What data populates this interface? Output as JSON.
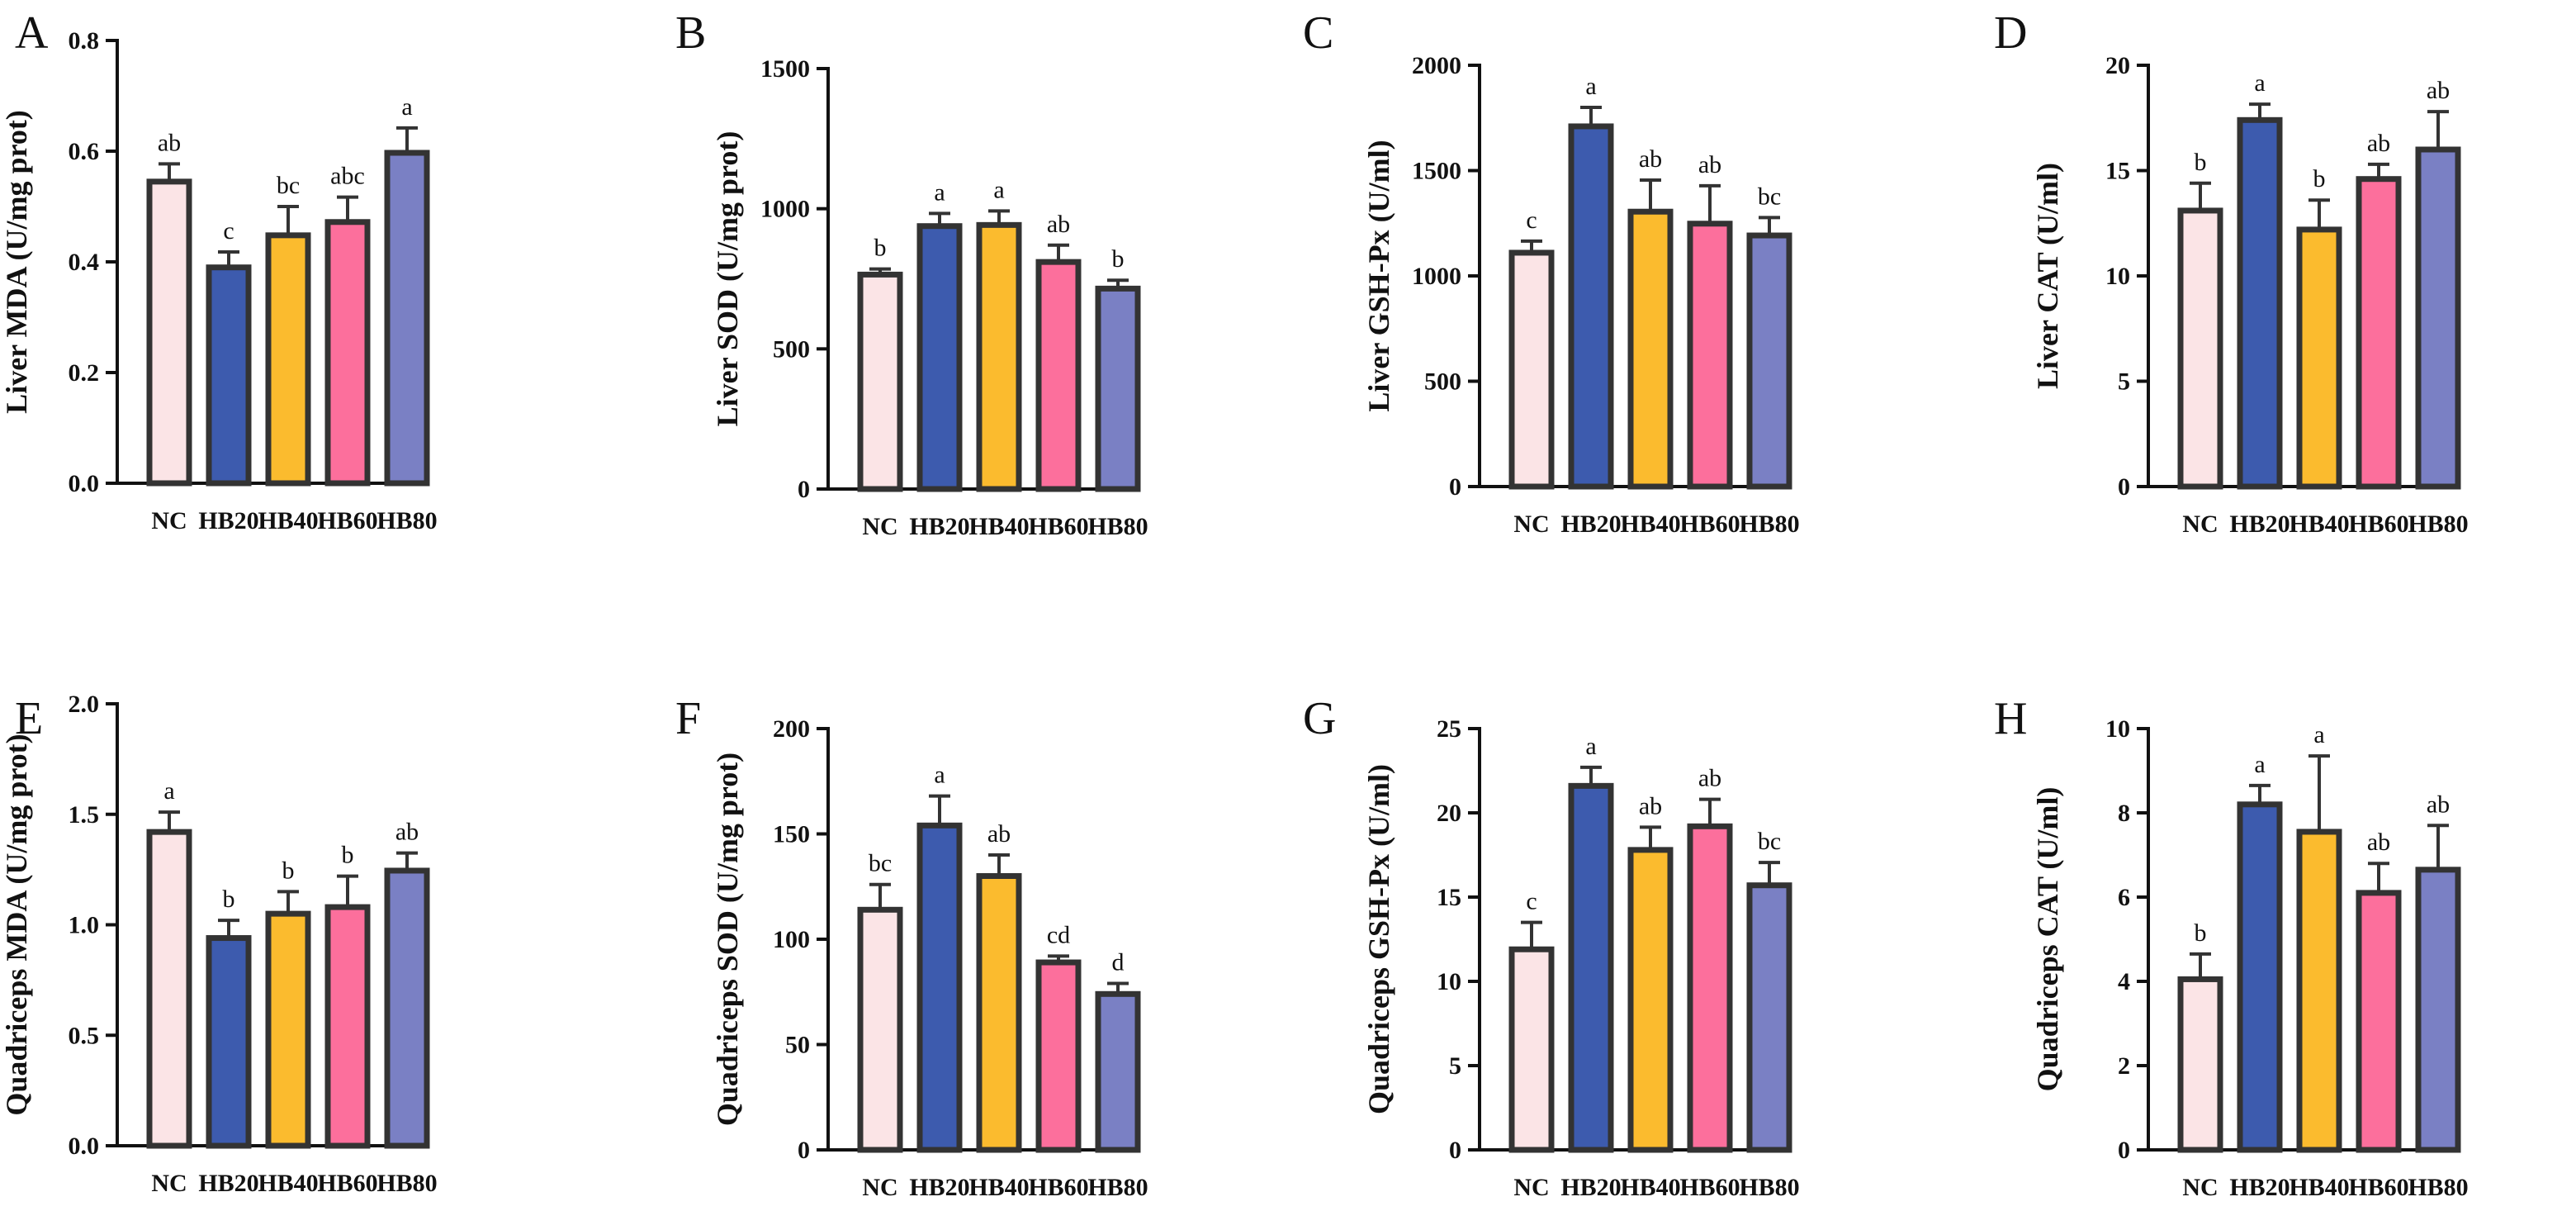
{
  "colors": {
    "NC": "#fbe4e6",
    "HB20": "#3d5bae",
    "HB40": "#fbbb2e",
    "HB60": "#fc6f9c",
    "HB80": "#7a80c4",
    "outline": "#333333"
  },
  "categories": [
    "NC",
    "HB20",
    "HB40",
    "HB60",
    "HB80"
  ],
  "chart_data": [
    {
      "panel": "A",
      "type": "bar",
      "ylabel": "Liver MDA (U/mg prot)",
      "ylim": [
        0,
        0.8
      ],
      "yticks": [
        "0.0",
        "0.2",
        "0.4",
        "0.6",
        "0.8"
      ],
      "tickvals": [
        0,
        0.2,
        0.4,
        0.6,
        0.8
      ],
      "categories": [
        "NC",
        "HB20",
        "HB40",
        "HB60",
        "HB80"
      ],
      "values": [
        0.545,
        0.39,
        0.448,
        0.472,
        0.597
      ],
      "errors": [
        0.032,
        0.028,
        0.052,
        0.045,
        0.045
      ],
      "labels": [
        "ab",
        "c",
        "bc",
        "abc",
        "a"
      ]
    },
    {
      "panel": "B",
      "type": "bar",
      "ylabel": "Liver SOD (U/mg prot)",
      "ylim": [
        0,
        1500
      ],
      "yticks": [
        "0",
        "500",
        "1000",
        "1500"
      ],
      "tickvals": [
        0,
        500,
        1000,
        1500
      ],
      "categories": [
        "NC",
        "HB20",
        "HB40",
        "HB60",
        "HB80"
      ],
      "values": [
        765,
        938,
        942,
        810,
        715
      ],
      "errors": [
        20,
        45,
        50,
        60,
        30
      ],
      "labels": [
        "b",
        "a",
        "a",
        "ab",
        "b"
      ]
    },
    {
      "panel": "C",
      "type": "bar",
      "ylabel": "Liver GSH-Px (U/ml)",
      "ylim": [
        0,
        2000
      ],
      "yticks": [
        "0",
        "500",
        "1000",
        "1500",
        "2000"
      ],
      "tickvals": [
        0,
        500,
        1000,
        1500,
        2000
      ],
      "categories": [
        "NC",
        "HB20",
        "HB40",
        "HB60",
        "HB80"
      ],
      "values": [
        1110,
        1710,
        1305,
        1248,
        1192
      ],
      "errors": [
        55,
        90,
        150,
        180,
        85
      ],
      "labels": [
        "c",
        "a",
        "ab",
        "ab",
        "bc"
      ]
    },
    {
      "panel": "D",
      "type": "bar",
      "ylabel": "Liver CAT (U/ml)",
      "ylim": [
        0,
        20
      ],
      "yticks": [
        "0",
        "5",
        "10",
        "15",
        "20"
      ],
      "tickvals": [
        0,
        5,
        10,
        15,
        20
      ],
      "categories": [
        "NC",
        "HB20",
        "HB40",
        "HB60",
        "HB80"
      ],
      "values": [
        13.1,
        17.4,
        12.2,
        14.6,
        16.0
      ],
      "errors": [
        1.3,
        0.75,
        1.4,
        0.7,
        1.8
      ],
      "labels": [
        "b",
        "a",
        "b",
        "ab",
        "ab"
      ]
    },
    {
      "panel": "E",
      "type": "bar",
      "ylabel": "Quadriceps MDA (U/mg prot)",
      "ylim": [
        0,
        2.0
      ],
      "yticks": [
        "0.0",
        "0.5",
        "1.0",
        "1.5",
        "2.0"
      ],
      "tickvals": [
        0,
        0.5,
        1.0,
        1.5,
        2.0
      ],
      "categories": [
        "NC",
        "HB20",
        "HB40",
        "HB60",
        "HB80"
      ],
      "values": [
        1.42,
        0.94,
        1.05,
        1.08,
        1.245
      ],
      "errors": [
        0.09,
        0.08,
        0.1,
        0.14,
        0.08
      ],
      "labels": [
        "a",
        "b",
        "b",
        "b",
        "ab"
      ]
    },
    {
      "panel": "F",
      "type": "bar",
      "ylabel": "Quadriceps SOD (U/mg prot)",
      "ylim": [
        0,
        200
      ],
      "yticks": [
        "0",
        "50",
        "100",
        "150",
        "200"
      ],
      "tickvals": [
        0,
        50,
        100,
        150,
        200
      ],
      "categories": [
        "NC",
        "HB20",
        "HB40",
        "HB60",
        "HB80"
      ],
      "values": [
        114,
        154,
        130,
        89,
        74
      ],
      "errors": [
        12,
        14,
        10,
        3,
        5
      ],
      "labels": [
        "bc",
        "a",
        "ab",
        "cd",
        "d"
      ]
    },
    {
      "panel": "G",
      "type": "bar",
      "ylabel": "Quadriceps GSH-Px (U/ml)",
      "ylim": [
        0,
        25
      ],
      "yticks": [
        "0",
        "5",
        "10",
        "15",
        "20",
        "25"
      ],
      "tickvals": [
        0,
        5,
        10,
        15,
        20,
        25
      ],
      "categories": [
        "NC",
        "HB20",
        "HB40",
        "HB60",
        "HB80"
      ],
      "values": [
        11.9,
        21.6,
        17.8,
        19.2,
        15.7
      ],
      "errors": [
        1.6,
        1.1,
        1.35,
        1.6,
        1.35
      ],
      "labels": [
        "c",
        "a",
        "ab",
        "ab",
        "bc"
      ]
    },
    {
      "panel": "H",
      "type": "bar",
      "ylabel": "Quadriceps CAT (U/ml)",
      "ylim": [
        0,
        10
      ],
      "yticks": [
        "0",
        "2",
        "4",
        "6",
        "8",
        "10"
      ],
      "tickvals": [
        0,
        2,
        4,
        6,
        8,
        10
      ],
      "categories": [
        "NC",
        "HB20",
        "HB40",
        "HB60",
        "HB80"
      ],
      "values": [
        4.05,
        8.2,
        7.55,
        6.1,
        6.65
      ],
      "errors": [
        0.6,
        0.45,
        1.8,
        0.7,
        1.05
      ],
      "labels": [
        "b",
        "a",
        "a",
        "ab",
        "ab"
      ]
    }
  ]
}
